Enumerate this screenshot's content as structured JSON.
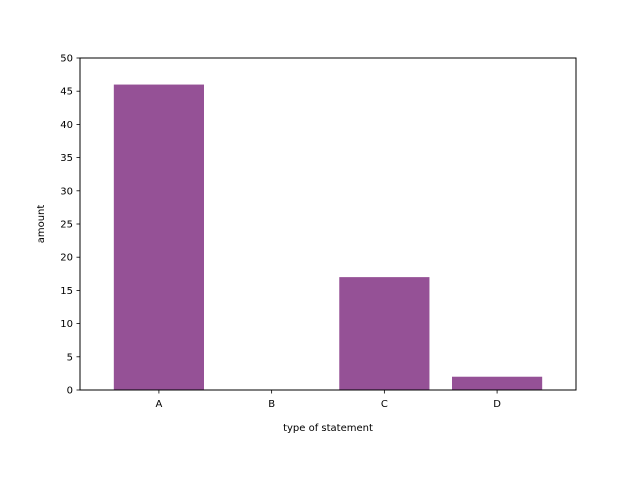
{
  "chart_data": {
    "type": "bar",
    "title": "",
    "xlabel": "type of statement",
    "ylabel": "amount",
    "categories": [
      "A",
      "B",
      "C",
      "D"
    ],
    "values": [
      46,
      0,
      17,
      2
    ],
    "ylim": [
      0,
      50
    ],
    "yticks": [
      0,
      5,
      10,
      15,
      20,
      25,
      30,
      35,
      40,
      45,
      50
    ],
    "bar_color": "#955196",
    "grid": false,
    "legend": "none"
  }
}
